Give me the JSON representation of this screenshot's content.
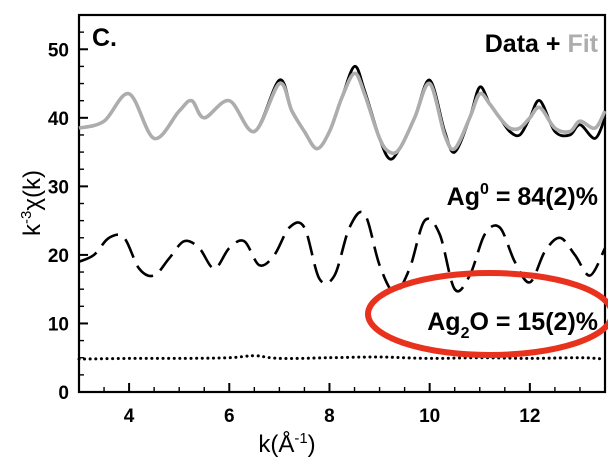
{
  "chart_data": {
    "type": "line",
    "panel_label": "C.",
    "legend": {
      "data_label": "Data",
      "plus": "+",
      "fit_label": "Fit",
      "placement": "top-right"
    },
    "xlabel": {
      "base": "k(Å",
      "sup": "-1",
      "close": ")"
    },
    "ylabel": {
      "base": "k",
      "sup": "-3",
      "rest": "χ(k)"
    },
    "xlim": [
      3.0,
      13.5
    ],
    "ylim": [
      0,
      55
    ],
    "xticks": [
      4,
      6,
      8,
      10,
      12
    ],
    "yticks": [
      0,
      10,
      20,
      30,
      40,
      50
    ],
    "grid": false,
    "annotations": [
      {
        "name": "ag0-fraction",
        "base": "Ag",
        "sup": "0",
        "rest": " = 84(2)%",
        "at": [
          13.5,
          37.5
        ]
      },
      {
        "name": "ag2o-fraction",
        "base": "Ag",
        "sub": "2",
        "rest": "O = 15(2)%",
        "at": [
          13.5,
          12.5
        ]
      }
    ],
    "highlight": {
      "shape": "ellipse",
      "color": "#e8321e",
      "around": "ag2o-fraction"
    },
    "series": [
      {
        "role": "data",
        "style": "solid",
        "color": "#000000",
        "x": [
          3.0,
          3.5,
          4.0,
          4.5,
          5.0,
          5.25,
          5.5,
          6.0,
          6.5,
          7.0,
          7.25,
          7.5,
          7.75,
          8.0,
          8.25,
          8.5,
          8.7,
          9.0,
          9.2,
          9.4,
          9.7,
          10.0,
          10.3,
          10.5,
          10.8,
          11.0,
          11.2,
          11.4,
          11.6,
          11.8,
          12.0,
          12.2,
          12.5,
          12.8,
          13.0,
          13.3,
          13.5
        ],
        "y": [
          38.5,
          39.5,
          43.5,
          37,
          41,
          42.5,
          40,
          42.5,
          38,
          45.5,
          41,
          38,
          35.5,
          38,
          43,
          47.5,
          44,
          37,
          34,
          35.5,
          40,
          45.5,
          38,
          35,
          40,
          44.5,
          42,
          40,
          38,
          37.5,
          40,
          42.5,
          38,
          37.5,
          39,
          37,
          40
        ]
      },
      {
        "role": "fit",
        "style": "solid",
        "color": "#adadad",
        "x": [
          3.0,
          3.5,
          4.0,
          4.5,
          5.0,
          5.25,
          5.5,
          6.0,
          6.5,
          7.0,
          7.25,
          7.5,
          7.75,
          8.0,
          8.25,
          8.5,
          8.7,
          9.0,
          9.2,
          9.4,
          9.7,
          10.0,
          10.3,
          10.5,
          10.8,
          11.0,
          11.2,
          11.4,
          11.6,
          11.8,
          12.0,
          12.2,
          12.5,
          12.8,
          13.0,
          13.3,
          13.5
        ],
        "y": [
          38.5,
          39.5,
          43.5,
          37,
          41,
          42.5,
          40,
          42.5,
          38,
          45,
          41,
          38,
          35.5,
          38,
          43,
          46.5,
          43.5,
          37,
          35,
          35.5,
          40,
          45,
          37.5,
          35.5,
          40,
          43.5,
          42,
          40,
          38.5,
          38.5,
          40,
          41.5,
          38.5,
          38,
          39.5,
          38.5,
          41
        ]
      },
      {
        "role": "ag0-component",
        "style": "dashed",
        "color": "#000000",
        "x": [
          3.0,
          3.3,
          3.6,
          3.9,
          4.2,
          4.5,
          4.8,
          5.1,
          5.4,
          5.7,
          6.0,
          6.3,
          6.6,
          6.9,
          7.2,
          7.5,
          7.8,
          8.1,
          8.4,
          8.7,
          9.0,
          9.3,
          9.6,
          9.9,
          10.2,
          10.5,
          10.8,
          11.1,
          11.4,
          11.7,
          12.0,
          12.3,
          12.6,
          12.9,
          13.2,
          13.5
        ],
        "y": [
          19,
          20,
          22.5,
          22.5,
          18,
          17,
          19.5,
          22,
          21,
          18,
          21,
          22,
          18.5,
          20,
          24,
          24,
          16.5,
          17,
          24,
          26,
          18.5,
          14.5,
          18,
          25,
          23,
          15,
          17,
          23,
          24,
          19,
          16,
          20.5,
          22.5,
          20,
          17,
          21
        ]
      },
      {
        "role": "ag2o-component",
        "style": "dotted",
        "color": "#000000",
        "x": [
          3.0,
          4.0,
          5.0,
          6.0,
          6.5,
          7.0,
          8.0,
          9.0,
          10.0,
          11.0,
          12.0,
          13.0,
          13.5
        ],
        "y": [
          4.8,
          4.9,
          4.9,
          5.0,
          5.3,
          4.9,
          5.0,
          5.1,
          4.9,
          5.0,
          4.9,
          5.0,
          4.8
        ]
      }
    ]
  }
}
